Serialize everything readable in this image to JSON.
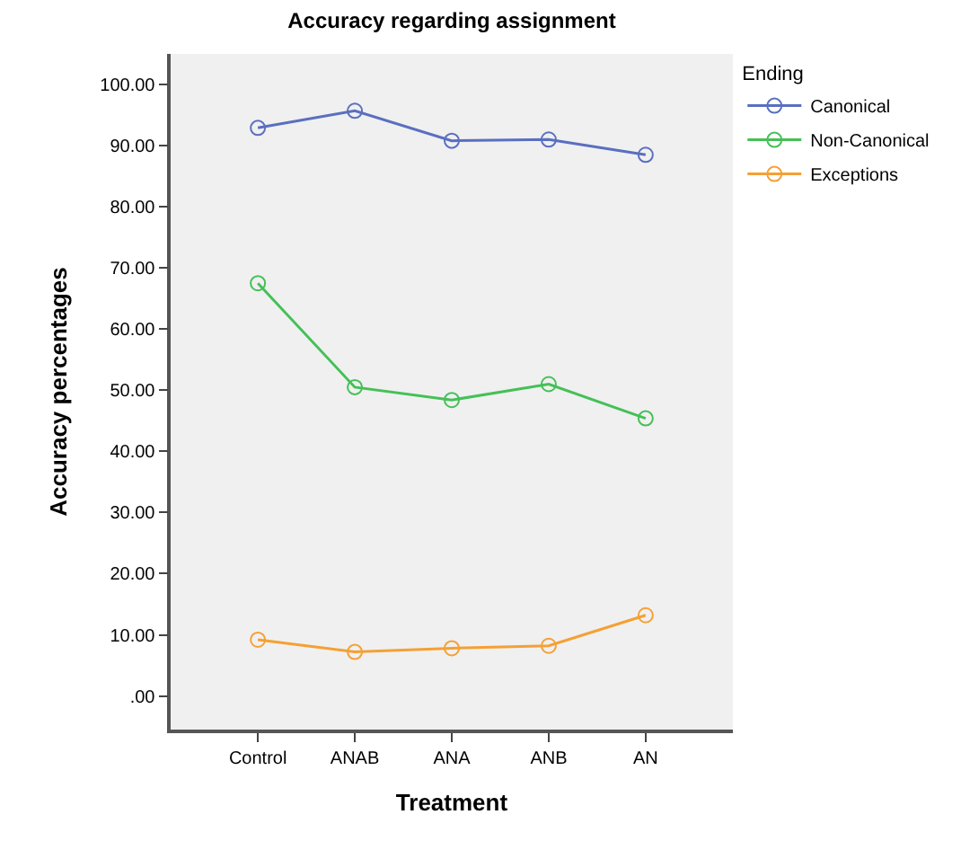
{
  "chart_data": {
    "type": "line",
    "title": "Accuracy regarding assignment",
    "xlabel": "Treatment",
    "ylabel": "Accuracy percentages",
    "legend_title": "Ending",
    "legend": "right",
    "grid": false,
    "marker": "circle",
    "line_style": "solid",
    "categories": [
      "Control",
      "ANAB",
      "ANA",
      "ANB",
      "AN"
    ],
    "ylim": [
      -5.5,
      105
    ],
    "yticks": [
      {
        "value": 0,
        "label": ".00"
      },
      {
        "value": 10,
        "label": "10.00"
      },
      {
        "value": 20,
        "label": "20.00"
      },
      {
        "value": 30,
        "label": "30.00"
      },
      {
        "value": 40,
        "label": "40.00"
      },
      {
        "value": 50,
        "label": "50.00"
      },
      {
        "value": 60,
        "label": "60.00"
      },
      {
        "value": 70,
        "label": "70.00"
      },
      {
        "value": 80,
        "label": "80.00"
      },
      {
        "value": 90,
        "label": "90.00"
      },
      {
        "value": 100,
        "label": "100.00"
      }
    ],
    "series": [
      {
        "name": "Canonical",
        "color": "#5a6fc0",
        "values": [
          92.9,
          95.7,
          90.8,
          91.0,
          88.5
        ]
      },
      {
        "name": "Non-Canonical",
        "color": "#45c057",
        "values": [
          67.5,
          50.5,
          48.4,
          51.0,
          45.4
        ]
      },
      {
        "name": "Exceptions",
        "color": "#f5a034",
        "values": [
          9.2,
          7.2,
          7.8,
          8.2,
          13.2
        ]
      }
    ]
  }
}
